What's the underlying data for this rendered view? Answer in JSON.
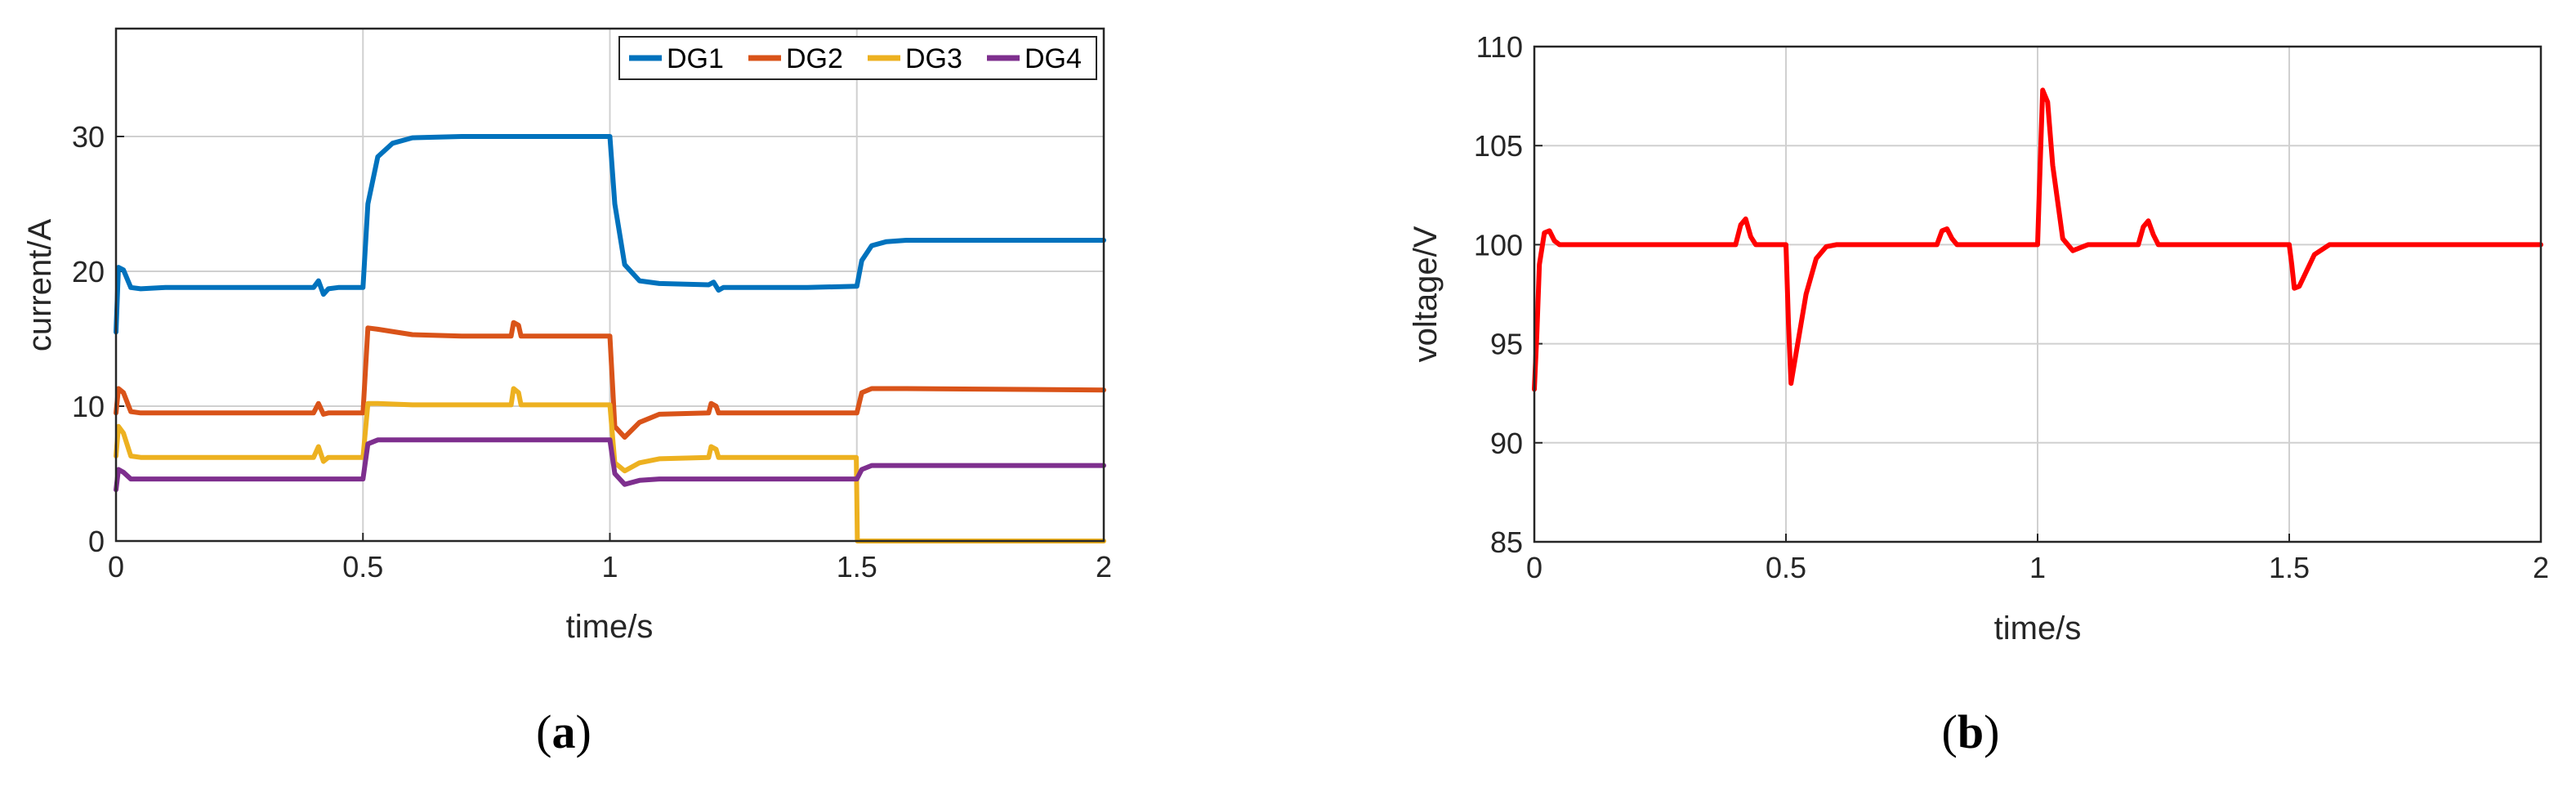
{
  "chart_data": [
    {
      "type": "line",
      "panel_caption": {
        "open": "(",
        "letter": "a",
        "close": ")"
      },
      "xlabel": "time/s",
      "ylabel": "current/A",
      "xlim": [
        0,
        2
      ],
      "ylim": [
        0,
        38
      ],
      "xticks": [
        "0",
        "0.5",
        "1",
        "1.5",
        "2"
      ],
      "yticks": [
        "0",
        "10",
        "20",
        "30"
      ],
      "grid": true,
      "legend_position": "top-right",
      "series": [
        {
          "name": "DG1",
          "color": "#0072BD",
          "x": [
            0,
            0.005,
            0.015,
            0.03,
            0.05,
            0.1,
            0.2,
            0.3,
            0.4,
            0.41,
            0.42,
            0.43,
            0.45,
            0.5,
            0.51,
            0.53,
            0.56,
            0.6,
            0.7,
            0.8,
            0.9,
            1.0,
            1.01,
            1.03,
            1.06,
            1.1,
            1.2,
            1.21,
            1.22,
            1.23,
            1.3,
            1.4,
            1.5,
            1.51,
            1.53,
            1.56,
            1.6,
            1.8,
            2.0
          ],
          "y": [
            15.5,
            20.3,
            20.1,
            18.8,
            18.7,
            18.8,
            18.8,
            18.8,
            18.8,
            19.3,
            18.3,
            18.7,
            18.8,
            18.8,
            25.0,
            28.5,
            29.5,
            29.9,
            30.0,
            30.0,
            30.0,
            30.0,
            25.0,
            20.5,
            19.3,
            19.1,
            19.0,
            19.2,
            18.6,
            18.8,
            18.8,
            18.8,
            18.9,
            20.8,
            21.9,
            22.2,
            22.3,
            22.3,
            22.3
          ]
        },
        {
          "name": "DG2",
          "color": "#D95319",
          "x": [
            0,
            0.005,
            0.015,
            0.03,
            0.05,
            0.2,
            0.4,
            0.41,
            0.42,
            0.43,
            0.45,
            0.5,
            0.51,
            0.53,
            0.6,
            0.7,
            0.8,
            0.805,
            0.815,
            0.82,
            0.9,
            1.0,
            1.01,
            1.03,
            1.06,
            1.1,
            1.2,
            1.205,
            1.215,
            1.22,
            1.3,
            1.4,
            1.5,
            1.51,
            1.53,
            1.6,
            2.0
          ],
          "y": [
            9.5,
            11.3,
            11.0,
            9.6,
            9.5,
            9.5,
            9.5,
            10.2,
            9.4,
            9.5,
            9.5,
            9.5,
            15.8,
            15.7,
            15.3,
            15.2,
            15.2,
            16.2,
            16.0,
            15.2,
            15.2,
            15.2,
            8.5,
            7.7,
            8.8,
            9.4,
            9.5,
            10.2,
            10.0,
            9.5,
            9.5,
            9.5,
            9.5,
            11.0,
            11.3,
            11.3,
            11.2
          ]
        },
        {
          "name": "DG3",
          "color": "#EDB120",
          "x": [
            0,
            0.005,
            0.015,
            0.03,
            0.05,
            0.2,
            0.4,
            0.41,
            0.42,
            0.43,
            0.45,
            0.5,
            0.51,
            0.53,
            0.6,
            0.7,
            0.8,
            0.805,
            0.815,
            0.82,
            0.9,
            1.0,
            1.01,
            1.03,
            1.06,
            1.1,
            1.2,
            1.205,
            1.215,
            1.22,
            1.3,
            1.4,
            1.499,
            1.5,
            1.501,
            2.0
          ],
          "y": [
            6.3,
            8.5,
            8.0,
            6.3,
            6.2,
            6.2,
            6.2,
            7.0,
            5.9,
            6.2,
            6.2,
            6.2,
            10.2,
            10.2,
            10.1,
            10.1,
            10.1,
            11.3,
            11.0,
            10.1,
            10.1,
            10.1,
            5.8,
            5.2,
            5.8,
            6.1,
            6.2,
            7.0,
            6.8,
            6.2,
            6.2,
            6.2,
            6.2,
            3.0,
            0.0,
            0.0
          ]
        },
        {
          "name": "DG4",
          "color": "#7E2F8E",
          "x": [
            0,
            0.005,
            0.015,
            0.03,
            0.05,
            0.2,
            0.4,
            0.45,
            0.5,
            0.51,
            0.53,
            0.6,
            0.8,
            1.0,
            1.01,
            1.03,
            1.06,
            1.1,
            1.3,
            1.5,
            1.51,
            1.53,
            1.6,
            2.0
          ],
          "y": [
            3.8,
            5.3,
            5.1,
            4.6,
            4.6,
            4.6,
            4.6,
            4.6,
            4.6,
            7.2,
            7.5,
            7.5,
            7.5,
            7.5,
            5.0,
            4.2,
            4.5,
            4.6,
            4.6,
            4.6,
            5.3,
            5.6,
            5.6,
            5.6
          ]
        }
      ]
    },
    {
      "type": "line",
      "panel_caption": {
        "open": "(",
        "letter": "b",
        "close": ")"
      },
      "xlabel": "time/s",
      "ylabel": "voltage/V",
      "xlim": [
        0,
        2
      ],
      "ylim": [
        85,
        110
      ],
      "xticks": [
        "0",
        "0.5",
        "1",
        "1.5",
        "2"
      ],
      "yticks": [
        "85",
        "90",
        "95",
        "100",
        "105",
        "110"
      ],
      "grid": true,
      "series": [
        {
          "color": "#FF0000",
          "x": [
            0,
            0.005,
            0.01,
            0.02,
            0.03,
            0.04,
            0.05,
            0.1,
            0.2,
            0.3,
            0.4,
            0.41,
            0.42,
            0.43,
            0.44,
            0.5,
            0.505,
            0.51,
            0.52,
            0.54,
            0.56,
            0.58,
            0.6,
            0.7,
            0.8,
            0.81,
            0.82,
            0.83,
            0.84,
            0.9,
            1.0,
            1.005,
            1.01,
            1.02,
            1.03,
            1.05,
            1.07,
            1.09,
            1.1,
            1.2,
            1.21,
            1.22,
            1.23,
            1.24,
            1.3,
            1.4,
            1.5,
            1.505,
            1.51,
            1.52,
            1.55,
            1.58,
            1.6,
            2.0
          ],
          "y": [
            92.7,
            95.5,
            99.0,
            100.6,
            100.7,
            100.2,
            100.0,
            100.0,
            100.0,
            100.0,
            100.0,
            101.0,
            101.3,
            100.4,
            100.0,
            100.0,
            96.0,
            93.0,
            94.5,
            97.5,
            99.3,
            99.9,
            100.0,
            100.0,
            100.0,
            100.7,
            100.8,
            100.3,
            100.0,
            100.0,
            100.0,
            104.0,
            107.8,
            107.2,
            104.0,
            100.3,
            99.7,
            99.9,
            100.0,
            100.0,
            100.9,
            101.2,
            100.5,
            100.0,
            100.0,
            100.0,
            100.0,
            99.0,
            97.8,
            97.9,
            99.5,
            100.0,
            100.0,
            100.0
          ]
        }
      ]
    }
  ]
}
